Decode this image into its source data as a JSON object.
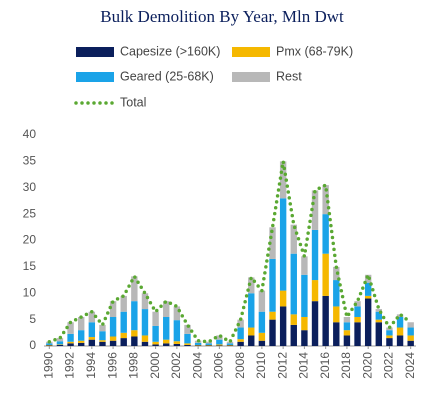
{
  "chart_data": {
    "type": "stacked-bar",
    "title": "Bulk Demolition By Year, Mln Dwt",
    "x": [
      1990,
      1991,
      1992,
      1993,
      1994,
      1995,
      1996,
      1997,
      1998,
      1999,
      2000,
      2001,
      2002,
      2003,
      2004,
      2005,
      2006,
      2007,
      2008,
      2009,
      2010,
      2011,
      2012,
      2013,
      2014,
      2015,
      2016,
      2017,
      2018,
      2019,
      2020,
      2021,
      2022,
      2023,
      2024
    ],
    "xticks": [
      1990,
      1992,
      1994,
      1996,
      1998,
      2000,
      2002,
      2004,
      2006,
      2008,
      2010,
      2012,
      2014,
      2016,
      2018,
      2020,
      2022,
      2024
    ],
    "ylim": [
      0,
      40
    ],
    "yticks": [
      0,
      5,
      10,
      15,
      20,
      25,
      30,
      35,
      40
    ],
    "series": [
      {
        "name": "Capesize (>160K)",
        "color": "#0b1f5c",
        "values": [
          0.1,
          0.2,
          0.5,
          0.6,
          1.2,
          0.8,
          1.0,
          1.5,
          1.8,
          0.8,
          0.3,
          0.5,
          0.4,
          0.2,
          0.1,
          0.1,
          0.1,
          0.1,
          0.8,
          2.0,
          1.0,
          5.0,
          7.5,
          4.0,
          3.0,
          8.5,
          9.5,
          4.5,
          2.0,
          4.5,
          9.0,
          4.5,
          1.5,
          2.0,
          1.0
        ]
      },
      {
        "name": "Pmx (68-79K)",
        "color": "#f5b800",
        "values": [
          0.1,
          0.1,
          0.3,
          0.4,
          0.5,
          0.3,
          0.8,
          1.0,
          1.2,
          1.2,
          0.5,
          0.7,
          0.5,
          0.3,
          0.1,
          0.1,
          0.2,
          0.1,
          0.5,
          1.5,
          1.5,
          1.5,
          3.0,
          2.0,
          2.5,
          4.0,
          8.0,
          3.0,
          1.0,
          1.0,
          0.5,
          0.5,
          0.5,
          1.5,
          1.0
        ]
      },
      {
        "name": "Geared (25-68K)",
        "color": "#1aa3e8",
        "values": [
          0.3,
          0.6,
          1.5,
          2.0,
          2.8,
          1.7,
          3.7,
          4.0,
          5.5,
          5.0,
          3.0,
          4.3,
          4.0,
          1.8,
          0.4,
          0.3,
          0.9,
          0.3,
          2.2,
          6.5,
          4.0,
          10.0,
          17.5,
          11.5,
          8.0,
          9.5,
          7.5,
          5.0,
          1.5,
          2.0,
          2.5,
          1.5,
          1.0,
          2.0,
          1.5
        ]
      },
      {
        "name": "Rest",
        "color": "#b8b8b8",
        "values": [
          0.3,
          0.6,
          2.2,
          2.5,
          2.0,
          1.2,
          3.0,
          3.0,
          4.7,
          3.0,
          2.7,
          3.0,
          2.6,
          1.7,
          0.4,
          0.3,
          0.8,
          0.3,
          1.5,
          3.0,
          4.0,
          6.0,
          7.0,
          5.5,
          3.5,
          7.5,
          5.5,
          2.5,
          1.0,
          1.0,
          1.5,
          0.5,
          0.5,
          0.5,
          1.0
        ]
      }
    ],
    "total": {
      "name": "Total",
      "color": "#5aa832",
      "values": [
        0.8,
        1.5,
        4.5,
        5.5,
        6.5,
        4.0,
        8.5,
        9.5,
        13.2,
        10.0,
        6.5,
        8.5,
        7.5,
        4.0,
        1.0,
        0.8,
        2.0,
        0.8,
        5.0,
        13.0,
        10.5,
        22.5,
        35.0,
        23.0,
        17.0,
        29.5,
        30.5,
        15.0,
        5.5,
        8.5,
        13.5,
        7.0,
        3.5,
        6.0,
        4.5
      ]
    }
  }
}
